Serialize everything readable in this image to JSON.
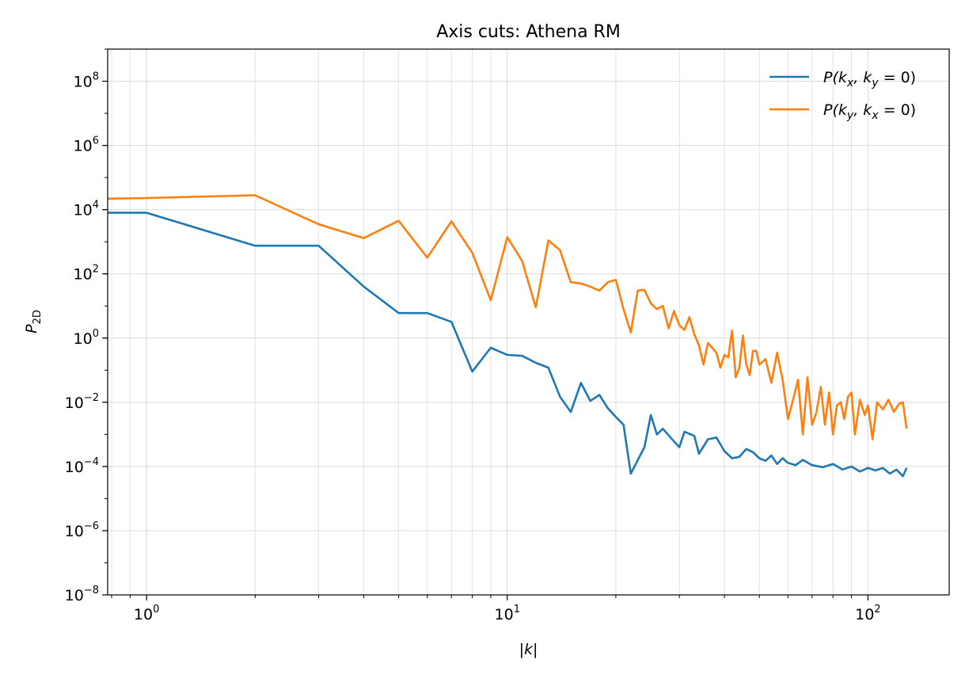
{
  "chart_data": {
    "type": "line",
    "title": "Axis cuts: Athena RM",
    "xlabel": "|k|",
    "ylabel": "P_2D",
    "xscale": "log",
    "yscale": "log",
    "xlim": [
      0.78,
      168
    ],
    "ylim": [
      1e-08,
      1000000000.0
    ],
    "x_ticks": [
      {
        "base": "10",
        "exp": "0",
        "value": 1
      },
      {
        "base": "10",
        "exp": "1",
        "value": 10
      },
      {
        "base": "10",
        "exp": "2",
        "value": 100
      }
    ],
    "y_ticks": [
      {
        "base": "10",
        "exp": "−8",
        "value": 1e-08
      },
      {
        "base": "10",
        "exp": "−6",
        "value": 1e-06
      },
      {
        "base": "10",
        "exp": "−4",
        "value": 0.0001
      },
      {
        "base": "10",
        "exp": "−2",
        "value": 0.01
      },
      {
        "base": "10",
        "exp": "0",
        "value": 1
      },
      {
        "base": "10",
        "exp": "2",
        "value": 100
      },
      {
        "base": "10",
        "exp": "4",
        "value": 10000.0
      },
      {
        "base": "10",
        "exp": "6",
        "value": 1000000.0
      },
      {
        "base": "10",
        "exp": "8",
        "value": 100000000.0
      }
    ],
    "grid": true,
    "legend_position": "top-right",
    "series": [
      {
        "name": "P(k_x, k_y = 0)",
        "legend": {
          "p": "P(",
          "k1": "k",
          "s1": "x",
          "mid": ", ",
          "k2": "k",
          "s2": "y",
          "end": " = 0)"
        },
        "color": "#1f77b4",
        "x": [
          0.78,
          1,
          2,
          3,
          4,
          5,
          6,
          7,
          8,
          9,
          10,
          11,
          12,
          13,
          14,
          15,
          16,
          17,
          18,
          19,
          20,
          21,
          22,
          24,
          25,
          26,
          27,
          29,
          30,
          31,
          33,
          34,
          36,
          38,
          40,
          42,
          44,
          46,
          48,
          50,
          52,
          54,
          56,
          58,
          60,
          63,
          66,
          70,
          75,
          80,
          85,
          90,
          95,
          100,
          105,
          110,
          115,
          120,
          125,
          128
        ],
        "y": [
          8000,
          8000,
          750,
          750,
          40,
          6,
          6,
          3.2,
          0.09,
          0.5,
          0.3,
          0.28,
          0.17,
          0.12,
          0.015,
          0.005,
          0.04,
          0.011,
          0.017,
          0.0065,
          0.0035,
          0.002,
          6e-05,
          0.0004,
          0.004,
          0.001,
          0.0015,
          0.0006,
          0.0004,
          0.0012,
          0.0009,
          0.00025,
          0.0007,
          0.0008,
          0.0003,
          0.00018,
          0.0002,
          0.00035,
          0.00028,
          0.00018,
          0.00015,
          0.00022,
          0.00012,
          0.00018,
          0.00013,
          0.00011,
          0.00016,
          0.00011,
          9.5e-05,
          0.00012,
          8e-05,
          0.0001,
          7e-05,
          9e-05,
          7.5e-05,
          9e-05,
          6e-05,
          8e-05,
          5e-05,
          9e-05
        ]
      },
      {
        "name": "P(k_y, k_x = 0)",
        "legend": {
          "p": "P(",
          "k1": "k",
          "s1": "y",
          "mid": ", ",
          "k2": "k",
          "s2": "x",
          "end": " = 0)"
        },
        "color": "#ff7f0e",
        "x": [
          0.78,
          1,
          2,
          3,
          4,
          5,
          6,
          7,
          8,
          9,
          10,
          11,
          12,
          13,
          14,
          15,
          16,
          17,
          18,
          19,
          20,
          21,
          22,
          23,
          24,
          25,
          26,
          27,
          28,
          29,
          30,
          31,
          32,
          33,
          34,
          35,
          36,
          37,
          38,
          39,
          40,
          41,
          42,
          43,
          44,
          45,
          46,
          47,
          48,
          49,
          50,
          52,
          54,
          56,
          58,
          60,
          62,
          64,
          66,
          68,
          70,
          72,
          74,
          76,
          78,
          80,
          82,
          84,
          86,
          88,
          90,
          92,
          95,
          98,
          100,
          103,
          106,
          110,
          114,
          118,
          122,
          125,
          128
        ],
        "y": [
          22000,
          23000,
          28000,
          3500,
          1300,
          4500,
          320,
          4300,
          450,
          15,
          1400,
          250,
          9,
          1100,
          550,
          55,
          50,
          40,
          30,
          55,
          65,
          8,
          1.5,
          30,
          32,
          12,
          8,
          10,
          2,
          7,
          2.5,
          1.8,
          4.5,
          1.3,
          0.6,
          0.15,
          0.7,
          0.5,
          0.35,
          0.12,
          0.3,
          0.25,
          1.7,
          0.06,
          0.12,
          1.2,
          0.15,
          0.07,
          0.4,
          0.4,
          0.15,
          0.22,
          0.04,
          0.35,
          0.05,
          0.003,
          0.012,
          0.05,
          0.001,
          0.06,
          0.002,
          0.005,
          0.03,
          0.002,
          0.02,
          0.001,
          0.008,
          0.01,
          0.003,
          0.015,
          0.02,
          0.001,
          0.012,
          0.004,
          0.008,
          0.0007,
          0.01,
          0.006,
          0.012,
          0.005,
          0.009,
          0.01,
          0.0015
        ]
      }
    ]
  }
}
